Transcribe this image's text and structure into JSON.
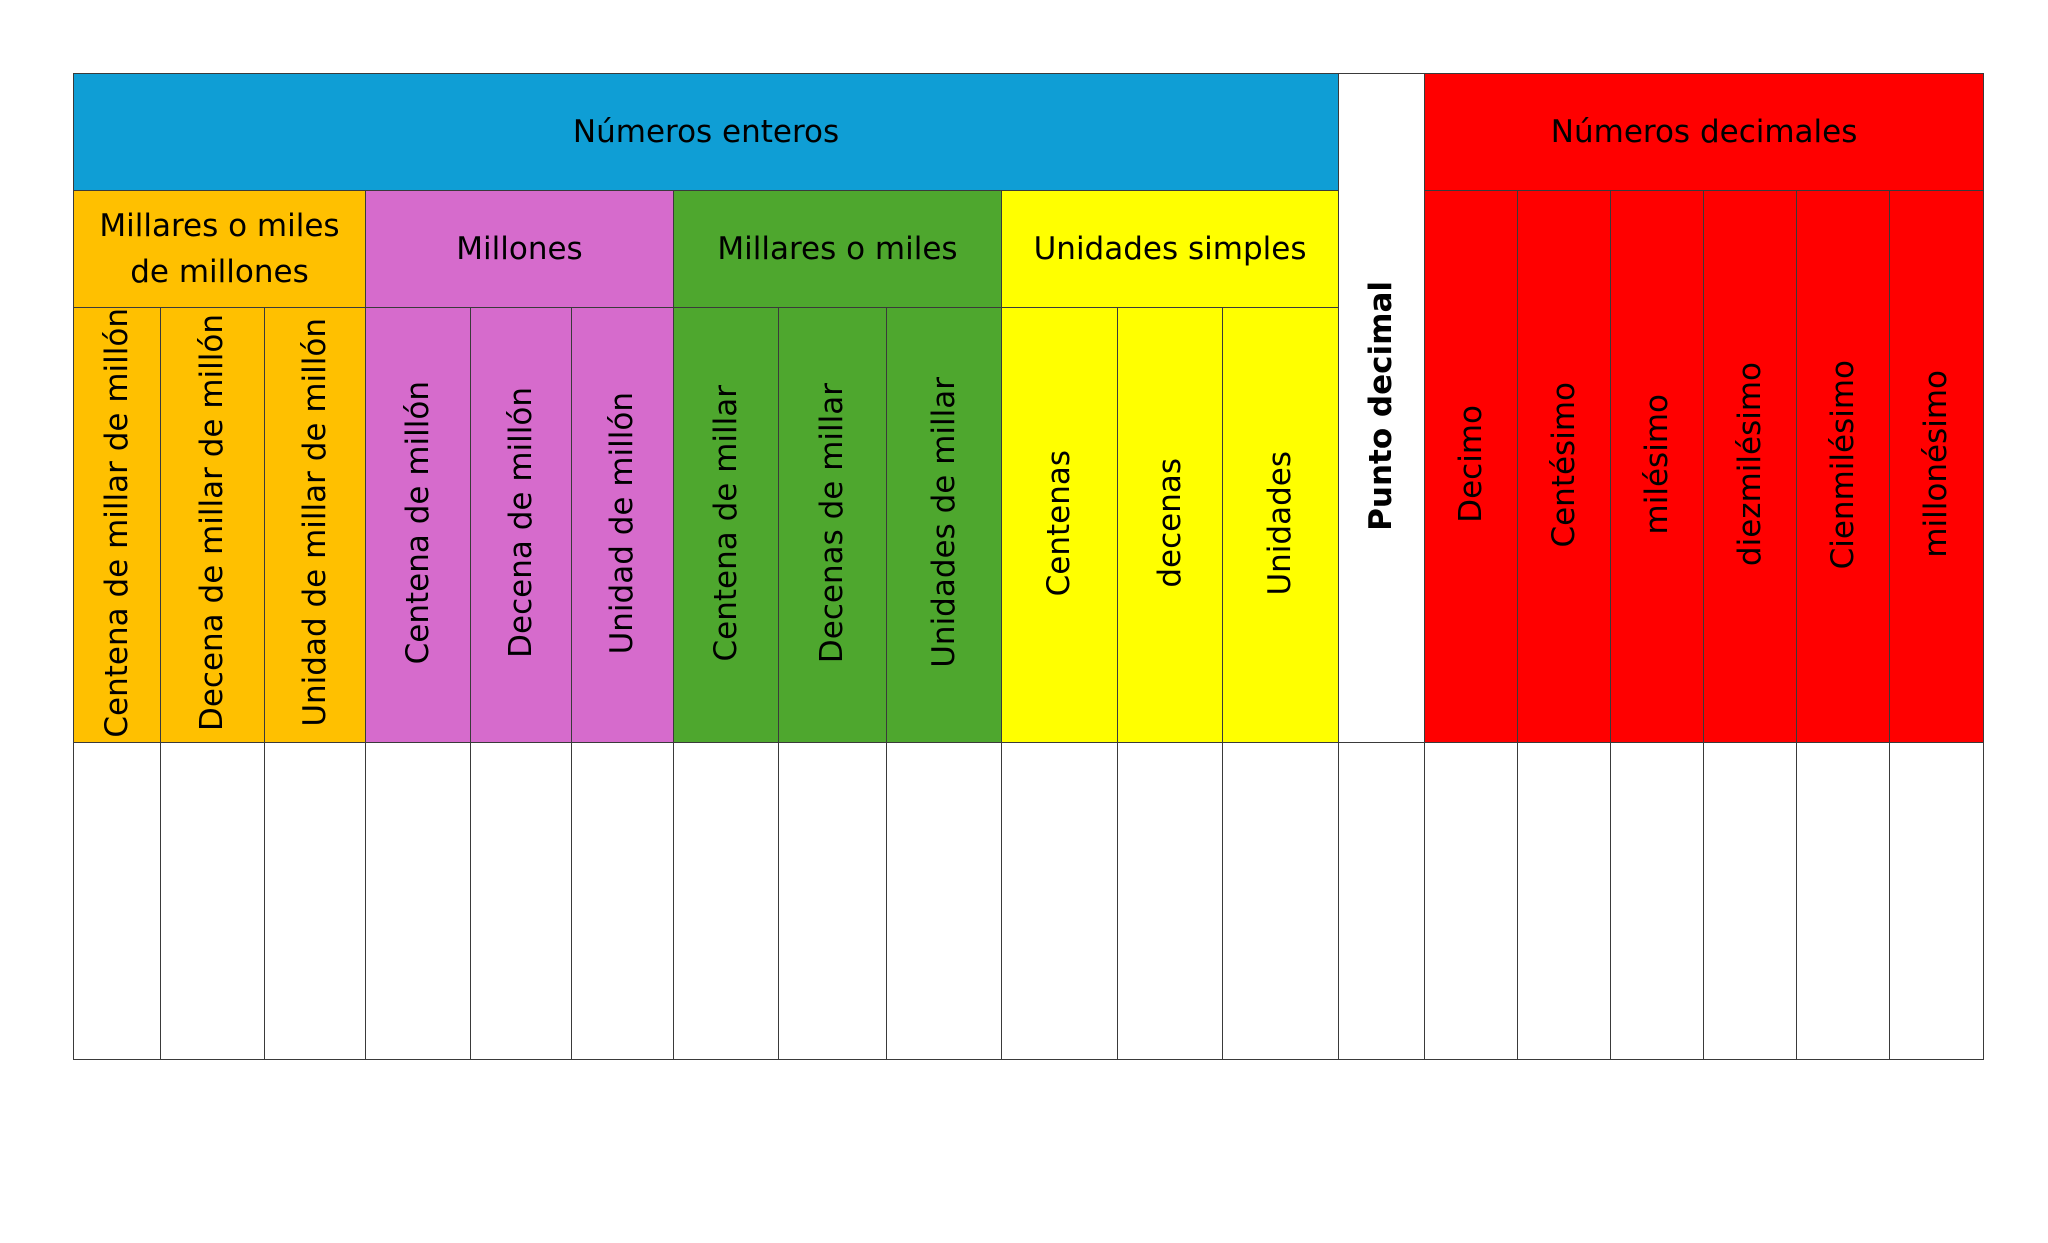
{
  "colors": {
    "enteros": "#0f9ed5",
    "miles_de_millones": "#ffc000",
    "millones": "#d66bcc",
    "miles": "#4ea72e",
    "simples": "#ffff00",
    "punto": "#ffffff",
    "decimales": "#ff0000"
  },
  "header": {
    "enteros": "Números enteros",
    "punto": "Punto decimal",
    "decimales": "Números decimales"
  },
  "groups": {
    "miles_de_millones": "Millares o miles de millones",
    "millones": "Millones",
    "miles": "Millares o miles",
    "simples": "Unidades simples"
  },
  "places": [
    "Centena de millar de millón",
    "Decena de millar de millón",
    "Unidad de millar de millón",
    "Centena de millón",
    "Decena de millón",
    "Unidad de millón",
    "Centena de millar",
    "Decenas de millar",
    "Unidades de millar",
    "Centenas",
    "decenas",
    "Unidades"
  ],
  "decimal_places": [
    "Decimo",
    "Centésimo",
    "milésimo",
    "diezmilésimo",
    "Cienmilésimo",
    "millonésimo"
  ]
}
